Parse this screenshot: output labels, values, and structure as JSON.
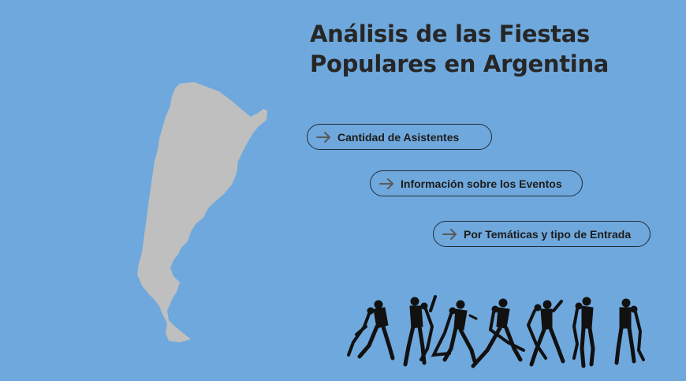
{
  "title": {
    "line1": "Análisis de las Fiestas",
    "line2": "Populares en Argentina"
  },
  "nav": [
    {
      "label": "Cantidad de Asistentes",
      "icon": "arrow-right-icon"
    },
    {
      "label": "Información sobre los Eventos",
      "icon": "arrow-right-icon"
    },
    {
      "label": "Por Temáticas y tipo de Entrada",
      "icon": "arrow-right-icon"
    }
  ],
  "colors": {
    "background": "#6fa8dc",
    "map_fill": "#bfbfbf",
    "text": "#262626",
    "button_border": "#1f2d3d",
    "arrow": "#595959",
    "dancers": "#111111"
  },
  "illustrations": {
    "map": "argentina-map",
    "dancers": "tango-dancers-silhouettes"
  }
}
